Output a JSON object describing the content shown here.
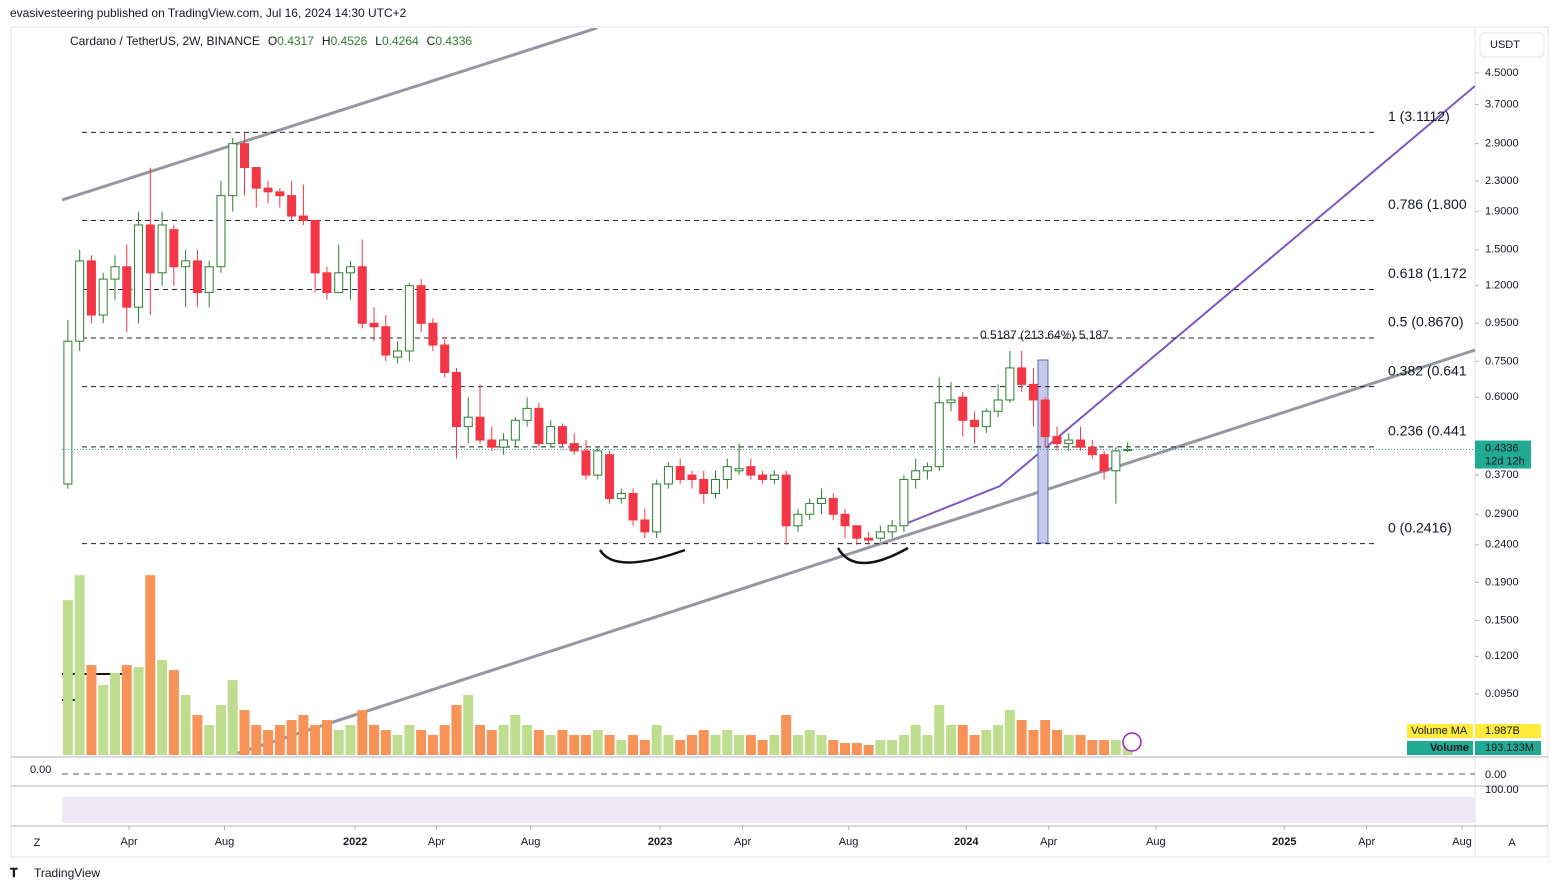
{
  "header": {
    "published": "evasivesteering published on TradingView.com, Jul 16, 2024 14:30 UTC+2",
    "logo": "TradingView",
    "scale_left": "Z",
    "scale_right": "A"
  },
  "chart_data": {
    "type": "candlestick",
    "symbol": "Cardano / TetherUS, 2W, BINANCE",
    "ohlc_prefixes": [
      "O",
      "H",
      "L",
      "C"
    ],
    "currency": "USDT",
    "countdown": "12d 12h",
    "log_scale": true,
    "up_color": "#2e7d32",
    "down_color": "#f23645",
    "volume_up_color": "#bedd8f",
    "volume_down_color": "#f89358",
    "open": [
      0.35,
      0.85,
      1.4,
      1.0,
      1.25,
      1.35,
      1.05,
      1.75,
      1.3,
      1.7,
      1.35,
      1.4,
      1.15,
      1.35,
      2.1,
      2.9,
      2.5,
      2.2,
      2.15,
      2.1,
      1.85,
      1.8,
      1.3,
      1.15,
      1.3,
      1.35,
      0.95,
      0.93,
      0.77,
      0.8,
      1.2,
      0.95,
      0.83,
      0.7,
      0.5,
      0.53,
      0.46,
      0.44,
      0.46,
      0.52,
      0.56,
      0.45,
      0.5,
      0.45,
      0.43,
      0.37,
      0.42,
      0.32,
      0.33,
      0.28,
      0.26,
      0.35,
      0.39,
      0.37,
      0.36,
      0.33,
      0.36,
      0.38,
      0.39,
      0.37,
      0.36,
      0.37,
      0.27,
      0.29,
      0.31,
      0.32,
      0.29,
      0.27,
      0.25,
      0.25,
      0.26,
      0.27,
      0.36,
      0.38,
      0.39,
      0.58,
      0.6,
      0.52,
      0.5,
      0.55,
      0.59,
      0.72,
      0.65,
      0.59,
      0.47,
      0.45,
      0.46,
      0.44,
      0.42,
      0.38,
      0.4317
    ],
    "high": [
      0.97,
      1.5,
      1.45,
      1.3,
      1.45,
      1.55,
      1.9,
      2.5,
      1.9,
      1.75,
      1.5,
      1.5,
      1.4,
      2.3,
      3.0,
      3.1,
      2.5,
      2.3,
      2.2,
      2.3,
      2.25,
      1.8,
      1.35,
      1.55,
      1.4,
      1.6,
      1.05,
      1.0,
      0.85,
      1.22,
      1.25,
      0.98,
      0.86,
      0.72,
      0.6,
      0.65,
      0.5,
      0.48,
      0.53,
      0.6,
      0.58,
      0.52,
      0.51,
      0.48,
      0.46,
      0.44,
      0.43,
      0.34,
      0.34,
      0.3,
      0.36,
      0.4,
      0.41,
      0.38,
      0.38,
      0.38,
      0.41,
      0.45,
      0.41,
      0.38,
      0.38,
      0.38,
      0.3,
      0.32,
      0.34,
      0.33,
      0.3,
      0.27,
      0.26,
      0.27,
      0.28,
      0.37,
      0.41,
      0.4,
      0.68,
      0.66,
      0.62,
      0.55,
      0.56,
      0.65,
      0.8,
      0.8,
      0.72,
      0.6,
      0.5,
      0.48,
      0.5,
      0.46,
      0.43,
      0.44,
      0.4526
    ],
    "low": [
      0.34,
      0.8,
      0.95,
      0.95,
      1.1,
      0.9,
      0.95,
      1.0,
      1.2,
      1.2,
      1.05,
      1.05,
      1.05,
      1.3,
      1.9,
      2.1,
      1.95,
      2.0,
      1.95,
      1.8,
      1.75,
      1.15,
      1.1,
      1.15,
      1.1,
      0.92,
      0.85,
      0.75,
      0.74,
      0.75,
      0.9,
      0.8,
      0.68,
      0.41,
      0.45,
      0.45,
      0.43,
      0.42,
      0.44,
      0.5,
      0.44,
      0.44,
      0.44,
      0.42,
      0.36,
      0.36,
      0.31,
      0.31,
      0.27,
      0.25,
      0.25,
      0.34,
      0.35,
      0.34,
      0.31,
      0.32,
      0.34,
      0.37,
      0.36,
      0.35,
      0.35,
      0.24,
      0.26,
      0.28,
      0.29,
      0.28,
      0.25,
      0.24,
      0.24,
      0.245,
      0.25,
      0.26,
      0.34,
      0.36,
      0.38,
      0.55,
      0.47,
      0.45,
      0.48,
      0.53,
      0.58,
      0.62,
      0.5,
      0.44,
      0.43,
      0.43,
      0.43,
      0.41,
      0.36,
      0.31,
      0.4264
    ],
    "close": [
      0.85,
      1.4,
      1.0,
      1.25,
      1.35,
      1.05,
      1.75,
      1.3,
      1.75,
      1.35,
      1.4,
      1.15,
      1.35,
      2.1,
      2.9,
      2.5,
      2.2,
      2.15,
      2.1,
      1.85,
      1.8,
      1.3,
      1.15,
      1.3,
      1.35,
      0.95,
      0.93,
      0.78,
      0.8,
      1.2,
      0.95,
      0.83,
      0.7,
      0.5,
      0.53,
      0.46,
      0.44,
      0.46,
      0.52,
      0.56,
      0.45,
      0.5,
      0.45,
      0.43,
      0.37,
      0.43,
      0.32,
      0.33,
      0.28,
      0.26,
      0.35,
      0.39,
      0.36,
      0.36,
      0.33,
      0.36,
      0.39,
      0.385,
      0.37,
      0.36,
      0.37,
      0.27,
      0.29,
      0.31,
      0.32,
      0.29,
      0.27,
      0.25,
      0.247,
      0.26,
      0.27,
      0.36,
      0.38,
      0.39,
      0.58,
      0.59,
      0.52,
      0.5,
      0.55,
      0.59,
      0.72,
      0.65,
      0.59,
      0.47,
      0.45,
      0.46,
      0.44,
      0.42,
      0.38,
      0.43,
      0.4336
    ],
    "volume": [
      2139,
      2484,
      1242,
      966,
      1132,
      1242,
      1214,
      2484,
      1311,
      1173,
      828,
      552,
      414,
      690,
      1035,
      621,
      414,
      345,
      414,
      483,
      552,
      414,
      483,
      345,
      414,
      621,
      414,
      345,
      276,
      414,
      345,
      276,
      414,
      690,
      828,
      414,
      345,
      414,
      552,
      414,
      345,
      276,
      345,
      276,
      276,
      345,
      276,
      207,
      276,
      207,
      414,
      276,
      207,
      276,
      345,
      276,
      345,
      276,
      276,
      207,
      276,
      552,
      276,
      345,
      276,
      207,
      166,
      166,
      138,
      207,
      207,
      276,
      414,
      276,
      690,
      414,
      414,
      276,
      345,
      414,
      621,
      483,
      345,
      483,
      345,
      276,
      276,
      207,
      207,
      207,
      193.133
    ],
    "volume_lim": [
      0,
      2500
    ],
    "volume_name": "Volume",
    "volume_label": "193.133M",
    "volume_ma_name": "Volume MA",
    "volume_ma": 1987,
    "volume_ma_label": "1.987B",
    "ylim": [
      0.065,
      5.95
    ],
    "yticks": [
      {
        "value": 4.5,
        "label": "4.5000"
      },
      {
        "value": 3.7,
        "label": "3.7000"
      },
      {
        "value": 2.9,
        "label": "2.9000"
      },
      {
        "value": 2.3,
        "label": "2.3000"
      },
      {
        "value": 1.9,
        "label": "1.9000"
      },
      {
        "value": 1.5,
        "label": "1.5000"
      },
      {
        "value": 1.2,
        "label": "1.2000"
      },
      {
        "value": 0.95,
        "label": "0.9500"
      },
      {
        "value": 0.75,
        "label": "0.7500"
      },
      {
        "value": 0.6,
        "label": "0.6000"
      },
      {
        "value": 0.37,
        "label": "0.3700"
      },
      {
        "value": 0.29,
        "label": "0.2900"
      },
      {
        "value": 0.24,
        "label": "0.2400"
      },
      {
        "value": 0.19,
        "label": "0.1900"
      },
      {
        "value": 0.15,
        "label": "0.1500"
      },
      {
        "value": 0.12,
        "label": "0.1200"
      },
      {
        "value": 0.095,
        "label": "0.0950"
      }
    ],
    "xlim": [
      -0.5,
      119.5
    ],
    "xticks": [
      {
        "value": 5.2,
        "label": "Apr"
      },
      {
        "value": 13.3,
        "label": "Aug"
      },
      {
        "value": 24.4,
        "label": "2022"
      },
      {
        "value": 31.3,
        "label": "Apr"
      },
      {
        "value": 39.3,
        "label": "Aug"
      },
      {
        "value": 50.3,
        "label": "2023"
      },
      {
        "value": 57.3,
        "label": "Apr"
      },
      {
        "value": 66.3,
        "label": "Aug"
      },
      {
        "value": 76.3,
        "label": "2024"
      },
      {
        "value": 83.3,
        "label": "Apr"
      },
      {
        "value": 92.4,
        "label": "Aug"
      },
      {
        "value": 103.3,
        "label": "2025"
      },
      {
        "value": 110.3,
        "label": "Apr"
      },
      {
        "value": 118.4,
        "label": "Aug"
      }
    ],
    "fib_levels": [
      {
        "label": "1 (3.1112)",
        "value": 3.1112
      },
      {
        "label": "0.786 (1.800",
        "value": 1.8
      },
      {
        "label": "0.618 (1.172",
        "value": 1.172
      },
      {
        "label": "0.5 (0.8670)",
        "value": 0.867
      },
      {
        "label": "0.382 (0.641",
        "value": 0.641
      },
      {
        "label": "0.236 (0.441",
        "value": 0.441
      },
      {
        "label": "0 (0.2416)",
        "value": 0.2416
      }
    ],
    "measure_label": "0.5187 (213.64%) 5,187",
    "indicator_ticks": [
      {
        "value": 0,
        "label": "0.00"
      },
      {
        "value": 100,
        "label": "100.00"
      }
    ]
  }
}
